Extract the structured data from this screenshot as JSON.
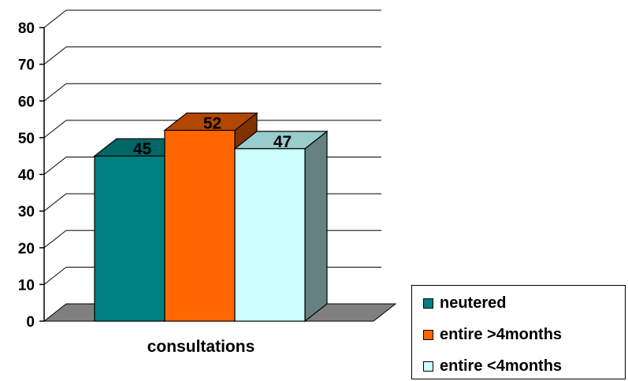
{
  "chart_data": {
    "type": "bar",
    "title": "",
    "xlabel": "",
    "ylabel": "",
    "categories": [
      "consultations"
    ],
    "series": [
      {
        "name": "neutered",
        "values": [
          45
        ],
        "color": "#008080"
      },
      {
        "name": "entire >4months",
        "values": [
          52
        ],
        "color": "#ff6600"
      },
      {
        "name": "entire <4months",
        "values": [
          47
        ],
        "color": "#ccffff"
      }
    ],
    "ylim": [
      0,
      80
    ],
    "yticks": [
      0,
      10,
      20,
      30,
      40,
      50,
      60,
      70,
      80
    ],
    "data_labels": [
      "45",
      "52",
      "47"
    ],
    "grid": true,
    "legend_position": "bottom-right",
    "style": "3d-clustered-column"
  }
}
